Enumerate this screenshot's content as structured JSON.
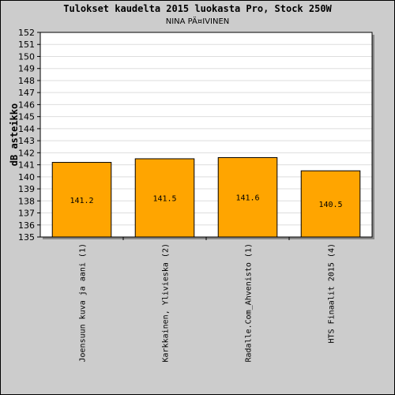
{
  "chart_data": {
    "type": "bar",
    "title": "Tulokset kaudelta 2015 luokasta Pro, Stock 250W",
    "subtitle": "NINA PÄ¤IVINEN",
    "xlabel": "",
    "ylabel": "dB asteikko",
    "ylim": [
      135,
      152
    ],
    "yticks": [
      135,
      136,
      137,
      138,
      139,
      140,
      141,
      142,
      143,
      144,
      145,
      146,
      147,
      148,
      149,
      150,
      151,
      152
    ],
    "categories": [
      "Joensuun kuva ja aani (1)",
      "Karkkainen, Ylivieska (2)",
      "Radalle.Com_Ahvenisto (1)",
      "HTS Finaalit 2015 (4)"
    ],
    "values": [
      141.2,
      141.5,
      141.6,
      140.5
    ],
    "data_labels": [
      "141.2",
      "141.5",
      "141.6",
      "140.5"
    ],
    "bar_color": "#ffa500",
    "grid": true,
    "legend": "none"
  }
}
